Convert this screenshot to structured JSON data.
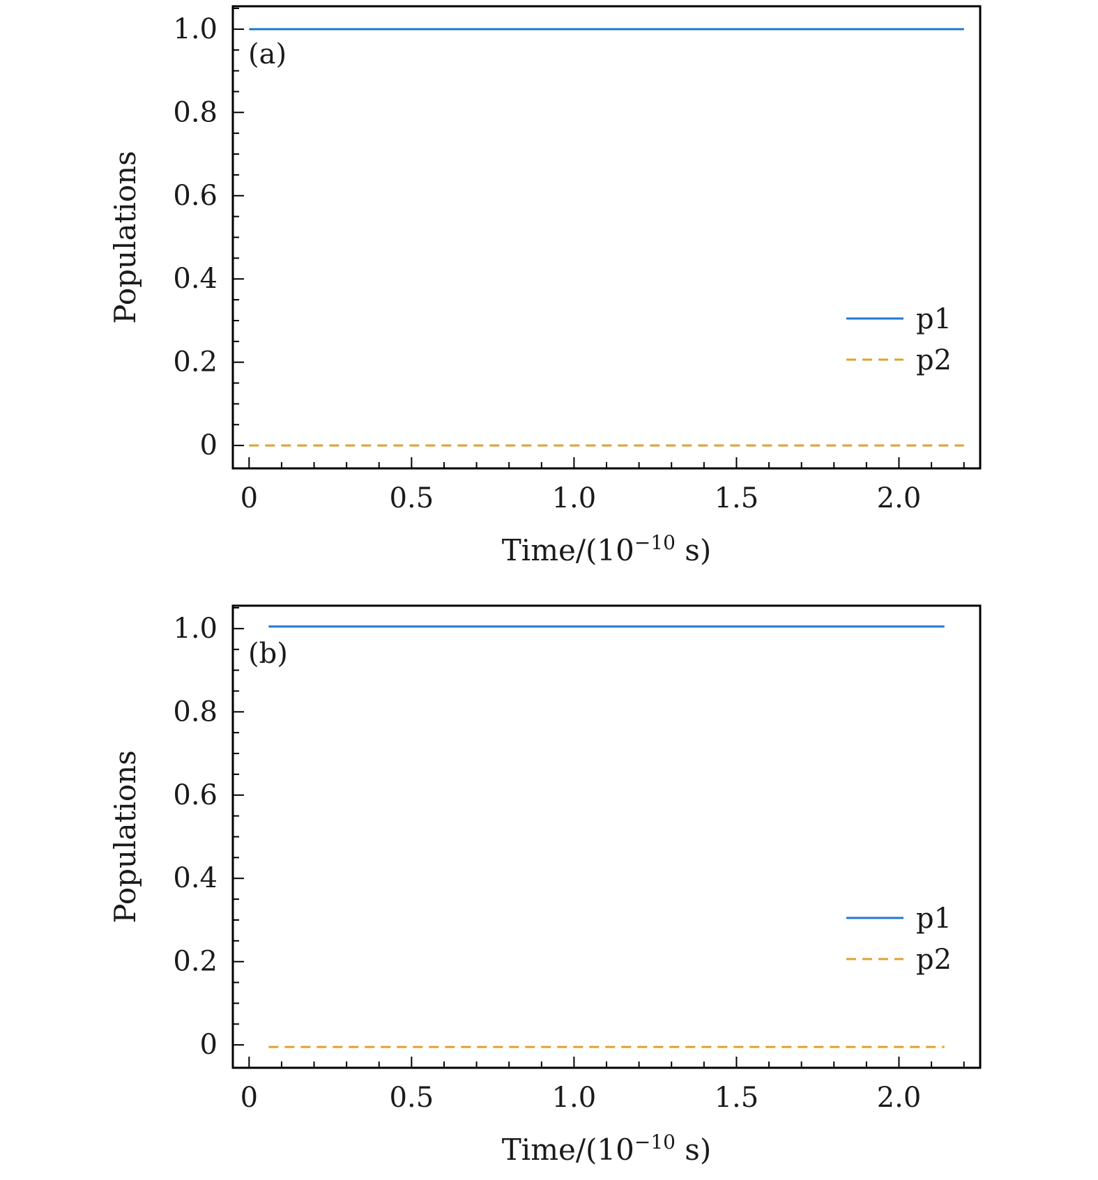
{
  "chart_data": [
    {
      "type": "line",
      "panel_label": "(a)",
      "xlabel": "Time/(10",
      "xlabel_exponent": "−10",
      "xlabel_suffix": " s)",
      "ylabel": "Populations",
      "xlim": [
        -0.05,
        2.25
      ],
      "ylim": [
        -0.055,
        1.055
      ],
      "x_ticks": [
        0,
        0.5,
        1.0,
        1.5,
        2.0
      ],
      "x_tick_labels": [
        "0",
        "0.5",
        "1.0",
        "1.5",
        "2.0"
      ],
      "x_minor_step": 0.1,
      "y_ticks": [
        0,
        0.2,
        0.4,
        0.6,
        0.8,
        1.0
      ],
      "y_tick_labels": [
        "0",
        "0.2",
        "0.4",
        "0.6",
        "0.8",
        "1.0"
      ],
      "y_minor_step": 0.05,
      "legend_position": "lower-right",
      "grid": false,
      "series": [
        {
          "name": "p1",
          "color": "#1f77d4",
          "dash": "solid",
          "x": [
            0.0,
            2.2
          ],
          "y": [
            1.0,
            1.0
          ]
        },
        {
          "name": "p2",
          "color": "#e0a030",
          "dash": "dashed",
          "x": [
            0.0,
            2.2
          ],
          "y": [
            0.0,
            0.0
          ]
        }
      ]
    },
    {
      "type": "line",
      "panel_label": "(b)",
      "xlabel": "Time/(10",
      "xlabel_exponent": "−10",
      "xlabel_suffix": " s)",
      "ylabel": "Populations",
      "xlim": [
        -0.05,
        2.25
      ],
      "ylim": [
        -0.055,
        1.055
      ],
      "x_ticks": [
        0,
        0.5,
        1.0,
        1.5,
        2.0
      ],
      "x_tick_labels": [
        "0",
        "0.5",
        "1.0",
        "1.5",
        "2.0"
      ],
      "x_minor_step": 0.1,
      "y_ticks": [
        0,
        0.2,
        0.4,
        0.6,
        0.8,
        1.0
      ],
      "y_tick_labels": [
        "0",
        "0.2",
        "0.4",
        "0.6",
        "0.8",
        "1.0"
      ],
      "y_minor_step": 0.05,
      "legend_position": "lower-right",
      "grid": false,
      "series": [
        {
          "name": "p1",
          "color": "#1f77d4",
          "dash": "solid",
          "x": [
            0.06,
            2.14
          ],
          "y": [
            1.005,
            1.005
          ]
        },
        {
          "name": "p2",
          "color": "#e0a030",
          "dash": "dashed",
          "x": [
            0.06,
            2.14
          ],
          "y": [
            -0.005,
            -0.005
          ]
        }
      ]
    }
  ]
}
